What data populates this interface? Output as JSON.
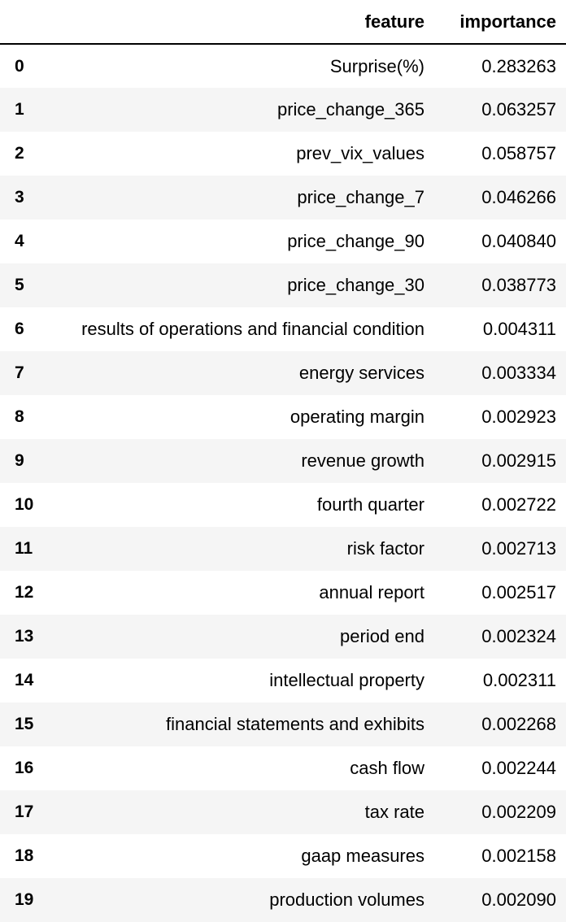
{
  "table": {
    "headers": {
      "index": "",
      "feature": "feature",
      "importance": "importance"
    },
    "rows": [
      {
        "index": "0",
        "feature": "Surprise(%)",
        "importance": "0.283263"
      },
      {
        "index": "1",
        "feature": "price_change_365",
        "importance": "0.063257"
      },
      {
        "index": "2",
        "feature": "prev_vix_values",
        "importance": "0.058757"
      },
      {
        "index": "3",
        "feature": "price_change_7",
        "importance": "0.046266"
      },
      {
        "index": "4",
        "feature": "price_change_90",
        "importance": "0.040840"
      },
      {
        "index": "5",
        "feature": "price_change_30",
        "importance": "0.038773"
      },
      {
        "index": "6",
        "feature": "results of operations and financial condition",
        "importance": "0.004311"
      },
      {
        "index": "7",
        "feature": "energy services",
        "importance": "0.003334"
      },
      {
        "index": "8",
        "feature": "operating margin",
        "importance": "0.002923"
      },
      {
        "index": "9",
        "feature": "revenue growth",
        "importance": "0.002915"
      },
      {
        "index": "10",
        "feature": "fourth quarter",
        "importance": "0.002722"
      },
      {
        "index": "11",
        "feature": "risk factor",
        "importance": "0.002713"
      },
      {
        "index": "12",
        "feature": "annual report",
        "importance": "0.002517"
      },
      {
        "index": "13",
        "feature": "period end",
        "importance": "0.002324"
      },
      {
        "index": "14",
        "feature": "intellectual property",
        "importance": "0.002311"
      },
      {
        "index": "15",
        "feature": "financial statements and exhibits",
        "importance": "0.002268"
      },
      {
        "index": "16",
        "feature": "cash flow",
        "importance": "0.002244"
      },
      {
        "index": "17",
        "feature": "tax rate",
        "importance": "0.002209"
      },
      {
        "index": "18",
        "feature": "gaap measures",
        "importance": "0.002158"
      },
      {
        "index": "19",
        "feature": "production volumes",
        "importance": "0.002090"
      }
    ]
  },
  "colors": {
    "stripe": "#f5f5f5",
    "background": "#ffffff",
    "text": "#000000",
    "header_rule": "#000000"
  }
}
